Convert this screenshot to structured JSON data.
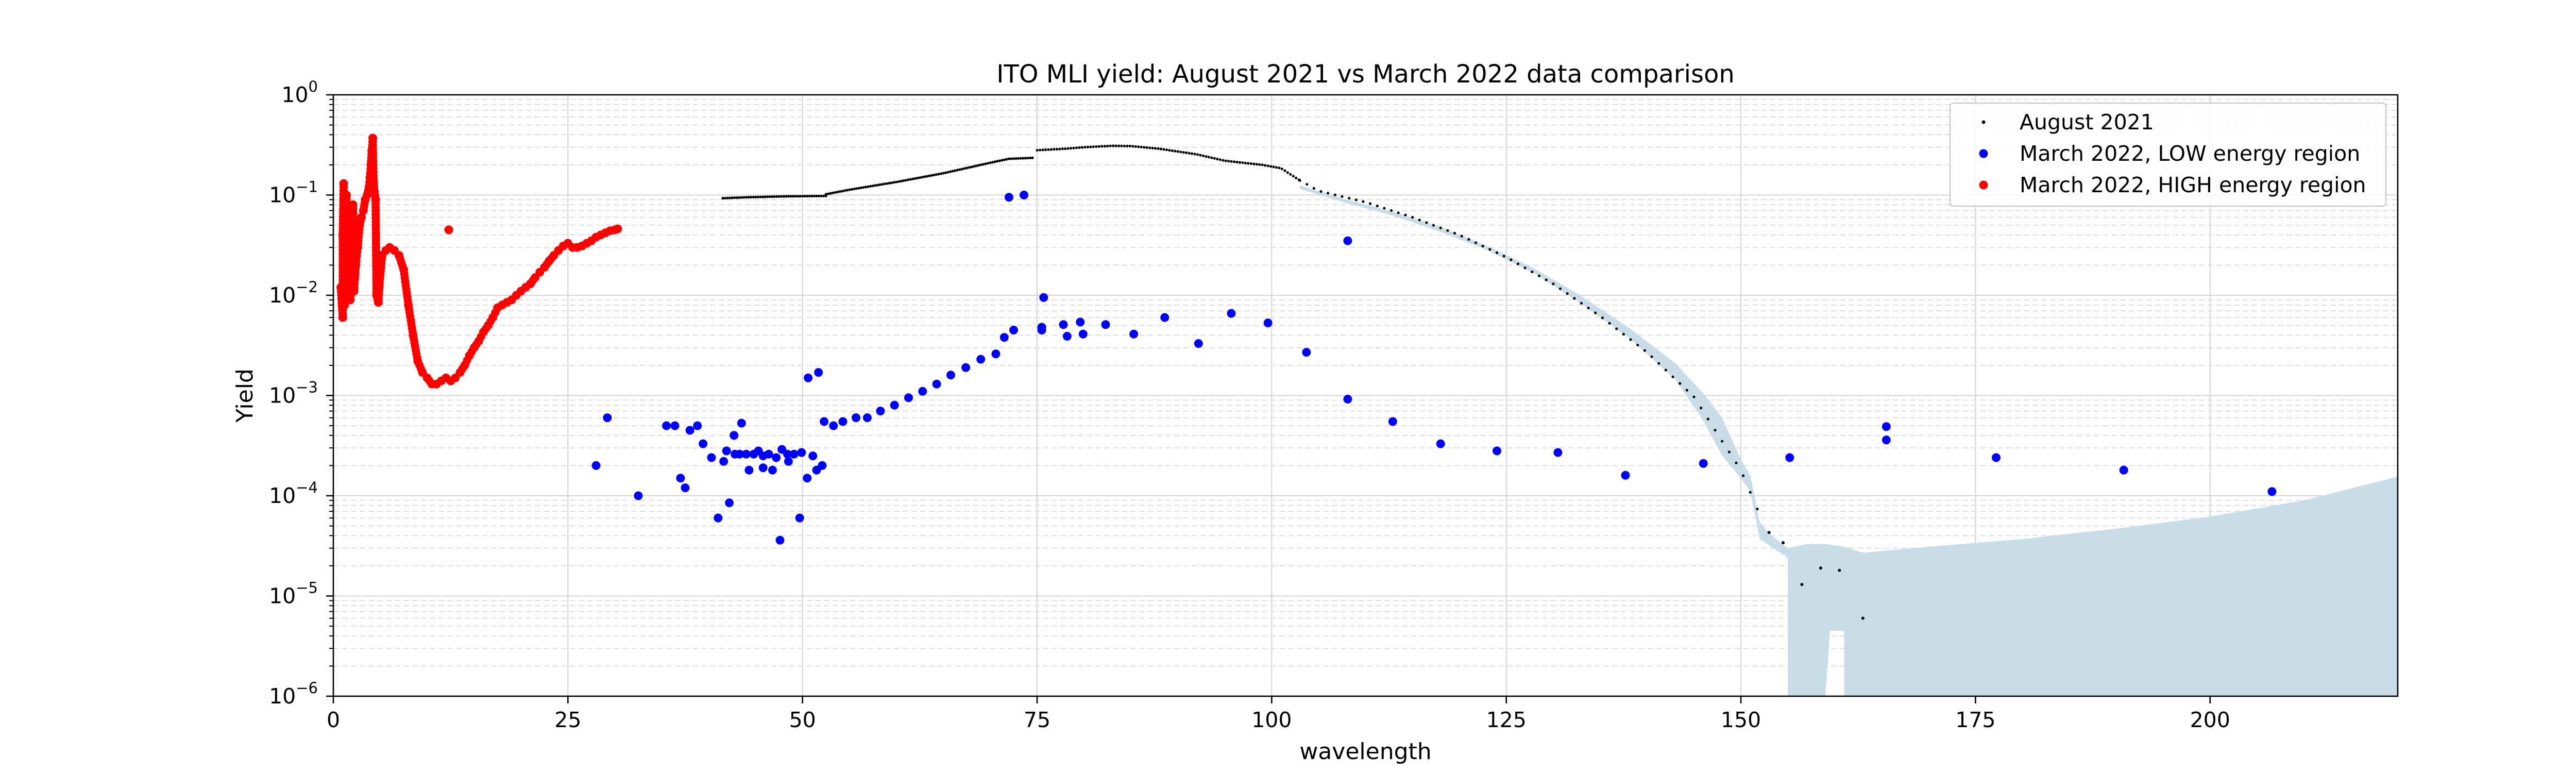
{
  "chart_data": {
    "type": "scatter",
    "title": "ITO MLI yield: August 2021 vs March 2022 data comparison",
    "xlabel": "wavelength",
    "ylabel": "Yield",
    "xlim": [
      0,
      220
    ],
    "ylim": [
      1e-06,
      1
    ],
    "yscale": "log",
    "x_ticks": [
      0,
      25,
      50,
      75,
      100,
      125,
      150,
      175,
      200
    ],
    "x_tick_labels": [
      "0",
      "25",
      "50",
      "75",
      "100",
      "125",
      "150",
      "175",
      "200"
    ],
    "y_ticks": [
      {
        "value": 1e-06,
        "base": "10",
        "exp": "−6"
      },
      {
        "value": 1e-05,
        "base": "10",
        "exp": "−5"
      },
      {
        "value": 0.0001,
        "base": "10",
        "exp": "−4"
      },
      {
        "value": 0.001,
        "base": "10",
        "exp": "−3"
      },
      {
        "value": 0.01,
        "base": "10",
        "exp": "−2"
      },
      {
        "value": 0.1,
        "base": "10",
        "exp": "−1"
      },
      {
        "value": 1,
        "base": "10",
        "exp": "0"
      }
    ],
    "grid": true,
    "legend_position": "top-right",
    "colors": {
      "august": "#000000",
      "low": "#0000ff",
      "high": "#ff0000",
      "band": "#c9dde9",
      "grid_major": "#d4d4d4",
      "grid_minor": "#dedede"
    },
    "band": {
      "description": "uncertainty band around August 2021 data",
      "upper": [
        [
          103,
          0.125
        ],
        [
          108,
          0.09
        ],
        [
          113,
          0.068
        ],
        [
          118,
          0.048
        ],
        [
          123,
          0.031
        ],
        [
          128,
          0.0185
        ],
        [
          133,
          0.0098
        ],
        [
          138,
          0.0048
        ],
        [
          143,
          0.0021
        ],
        [
          146,
          0.00105
        ],
        [
          148,
          0.0006
        ],
        [
          150,
          0.00023
        ],
        [
          151,
          0.00016
        ],
        [
          152,
          5.5e-05
        ],
        [
          153,
          4.2e-05
        ],
        [
          155,
          3e-05
        ],
        [
          157,
          3.3e-05
        ],
        [
          159,
          3.3e-05
        ],
        [
          161,
          3.1e-05
        ],
        [
          163,
          2.7e-05
        ],
        [
          170,
          3.1e-05
        ],
        [
          180,
          3.7e-05
        ],
        [
          190,
          4.7e-05
        ],
        [
          200,
          6.2e-05
        ],
        [
          210,
          9e-05
        ],
        [
          220,
          0.000155
        ]
      ],
      "lower": [
        [
          220,
          1e-06
        ],
        [
          161,
          1e-06
        ],
        [
          161,
          4.5e-06
        ],
        [
          159.5,
          4.5e-06
        ],
        [
          159,
          1e-06
        ],
        [
          155,
          1e-06
        ],
        [
          155,
          2.4e-05
        ],
        [
          152,
          3.7e-05
        ],
        [
          151,
          0.00011
        ],
        [
          150,
          0.00015
        ],
        [
          148,
          0.00025
        ],
        [
          146,
          0.00056
        ],
        [
          143,
          0.00145
        ],
        [
          138,
          0.0038
        ],
        [
          133,
          0.0082
        ],
        [
          128,
          0.0165
        ],
        [
          123,
          0.028
        ],
        [
          118,
          0.043
        ],
        [
          113,
          0.062
        ],
        [
          108,
          0.083
        ],
        [
          103,
          0.115
        ]
      ]
    },
    "series": [
      {
        "name": "August 2021",
        "marker": "dot",
        "segments": [
          {
            "x_start": 41.5,
            "x_end": 52.5,
            "step": 0.25,
            "points": [
              [
                41.5,
                0.093
              ],
              [
                44,
                0.095
              ],
              [
                48,
                0.097
              ],
              [
                52.5,
                0.098
              ]
            ]
          },
          {
            "x_start": 52.5,
            "x_end": 74.5,
            "step": 0.25,
            "points": [
              [
                52.5,
                0.102
              ],
              [
                55,
                0.113
              ],
              [
                60,
                0.135
              ],
              [
                65,
                0.165
              ],
              [
                70,
                0.21
              ],
              [
                72,
                0.23
              ],
              [
                74.5,
                0.235
              ]
            ]
          },
          {
            "x_start": 75,
            "x_end": 103,
            "step": 0.3,
            "points": [
              [
                75,
                0.28
              ],
              [
                78,
                0.29
              ],
              [
                80,
                0.3
              ],
              [
                83,
                0.31
              ],
              [
                85,
                0.308
              ],
              [
                88,
                0.29
              ],
              [
                92,
                0.255
              ],
              [
                95,
                0.22
              ],
              [
                99,
                0.2
              ],
              [
                101,
                0.185
              ],
              [
                103,
                0.14
              ]
            ]
          },
          {
            "x_start": 103,
            "x_end": 152,
            "step": 0.75,
            "points": [
              [
                103,
                0.14
              ],
              [
                105,
                0.11
              ],
              [
                110,
                0.085
              ],
              [
                115,
                0.06
              ],
              [
                120,
                0.04
              ],
              [
                125,
                0.024
              ],
              [
                130,
                0.013
              ],
              [
                135,
                0.0062
              ],
              [
                140,
                0.0027
              ],
              [
                145,
                0.00097
              ],
              [
                148,
                0.00035
              ],
              [
                150,
                0.00018
              ],
              [
                152,
                6.5e-05
              ]
            ]
          }
        ],
        "points": [
          [
            153,
            4.3e-05
          ],
          [
            154.5,
            3.4e-05
          ],
          [
            156.5,
            1.3e-05
          ],
          [
            158.5,
            1.9e-05
          ],
          [
            160.5,
            1.8e-05
          ],
          [
            163,
            6e-06
          ]
        ]
      },
      {
        "name": "March 2022, LOW energy region",
        "marker": "circle",
        "points": [
          [
            28,
            0.0002
          ],
          [
            29.2,
            0.0006
          ],
          [
            32.5,
            0.0001
          ],
          [
            35.5,
            0.0005
          ],
          [
            36.4,
            0.0005
          ],
          [
            37,
            0.00015
          ],
          [
            37.5,
            0.00012
          ],
          [
            38,
            0.00045
          ],
          [
            38.8,
            0.0005
          ],
          [
            39.4,
            0.00033
          ],
          [
            40.3,
            0.00024
          ],
          [
            41,
            6e-05
          ],
          [
            41.6,
            0.00022
          ],
          [
            41.9,
            0.00028
          ],
          [
            42.2,
            8.5e-05
          ],
          [
            42.7,
            0.0004
          ],
          [
            42.8,
            0.00026
          ],
          [
            43.3,
            0.00026
          ],
          [
            43.5,
            0.00053
          ],
          [
            44,
            0.00026
          ],
          [
            44.3,
            0.00018
          ],
          [
            44.8,
            0.00026
          ],
          [
            45.3,
            0.00028
          ],
          [
            45.8,
            0.00019
          ],
          [
            45.8,
            0.00025
          ],
          [
            46.4,
            0.00026
          ],
          [
            46.8,
            0.00018
          ],
          [
            47.2,
            0.00024
          ],
          [
            47.6,
            3.6e-05
          ],
          [
            47.8,
            0.00029
          ],
          [
            48.4,
            0.00026
          ],
          [
            48.5,
            0.00022
          ],
          [
            49.1,
            0.00026
          ],
          [
            49.7,
            6e-05
          ],
          [
            49.9,
            0.00027
          ],
          [
            50.5,
            0.00015
          ],
          [
            50.6,
            0.0015
          ],
          [
            51.1,
            0.00025
          ],
          [
            51.5,
            0.00018
          ],
          [
            51.7,
            0.0017
          ],
          [
            52.1,
            0.0002
          ],
          [
            52.3,
            0.00055
          ],
          [
            53.3,
            0.0005
          ],
          [
            54.3,
            0.00055
          ],
          [
            55.7,
            0.0006
          ],
          [
            56.9,
            0.0006
          ],
          [
            58.3,
            0.0007
          ],
          [
            59.8,
            0.0008
          ],
          [
            61.3,
            0.00095
          ],
          [
            62.8,
            0.0011
          ],
          [
            64.3,
            0.0013
          ],
          [
            65.8,
            0.0016
          ],
          [
            67.4,
            0.0019
          ],
          [
            69,
            0.0023
          ],
          [
            70.6,
            0.0026
          ],
          [
            71.5,
            0.0038
          ],
          [
            72,
            0.095
          ],
          [
            72.5,
            0.0045
          ],
          [
            73.6,
            0.1
          ],
          [
            75.5,
            0.0048
          ],
          [
            75.5,
            0.0045
          ],
          [
            75.7,
            0.0095
          ],
          [
            77.8,
            0.0051
          ],
          [
            78.2,
            0.0039
          ],
          [
            79.6,
            0.0054
          ],
          [
            79.9,
            0.0041
          ],
          [
            82.3,
            0.0051
          ],
          [
            85.3,
            0.0041
          ],
          [
            88.6,
            0.006
          ],
          [
            92.2,
            0.0033
          ],
          [
            95.7,
            0.0066
          ],
          [
            99.6,
            0.0053
          ],
          [
            103.7,
            0.0027
          ],
          [
            108.1,
            0.035
          ],
          [
            108.1,
            0.00092
          ],
          [
            112.9,
            0.00055
          ],
          [
            118,
            0.00033
          ],
          [
            124,
            0.00028
          ],
          [
            130.5,
            0.00027
          ],
          [
            137.7,
            0.00016
          ],
          [
            146,
            0.00021
          ],
          [
            155.2,
            0.00024
          ],
          [
            165.5,
            0.00049
          ],
          [
            165.5,
            0.00036
          ],
          [
            177.2,
            0.00024
          ],
          [
            190.8,
            0.00018
          ],
          [
            206.6,
            0.00011
          ]
        ]
      },
      {
        "name": "March 2022, HIGH energy region",
        "marker": "circle",
        "points": [
          [
            0.8,
            0.012
          ],
          [
            1,
            0.006
          ],
          [
            1,
            0.04
          ],
          [
            1.1,
            0.13
          ],
          [
            1.2,
            0.008
          ],
          [
            1.3,
            0.02
          ],
          [
            1.4,
            0.1
          ],
          [
            1.5,
            0.012
          ],
          [
            1.6,
            0.03
          ],
          [
            1.8,
            0.009
          ],
          [
            2,
            0.015
          ],
          [
            2.1,
            0.08
          ],
          [
            2.2,
            0.011
          ],
          [
            2.4,
            0.02
          ],
          [
            2.6,
            0.03
          ],
          [
            2.8,
            0.05
          ],
          [
            3,
            0.06
          ],
          [
            3.2,
            0.07
          ],
          [
            3.4,
            0.09
          ],
          [
            3.6,
            0.1
          ],
          [
            3.8,
            0.12
          ],
          [
            3.9,
            0.15
          ],
          [
            4,
            0.2
          ],
          [
            4.1,
            0.28
          ],
          [
            4.2,
            0.37
          ],
          [
            4.3,
            0.13
          ],
          [
            4.5,
            0.09
          ],
          [
            4.6,
            0.01
          ],
          [
            4.8,
            0.0085
          ],
          [
            4.9,
            0.012
          ],
          [
            5.2,
            0.025
          ],
          [
            5.6,
            0.028
          ],
          [
            6,
            0.03
          ],
          [
            6.5,
            0.028
          ],
          [
            7,
            0.025
          ],
          [
            7.5,
            0.018
          ],
          [
            8,
            0.008
          ],
          [
            8.5,
            0.004
          ],
          [
            9,
            0.0022
          ],
          [
            9.5,
            0.0017
          ],
          [
            10,
            0.0015
          ],
          [
            10.5,
            0.0013
          ],
          [
            11,
            0.0013
          ],
          [
            11.5,
            0.0014
          ],
          [
            12,
            0.0015
          ],
          [
            12.3,
            0.045
          ],
          [
            12.5,
            0.0014
          ],
          [
            13,
            0.0015
          ],
          [
            13.5,
            0.0017
          ],
          [
            14,
            0.002
          ],
          [
            14.5,
            0.0025
          ],
          [
            15,
            0.003
          ],
          [
            15.5,
            0.0035
          ],
          [
            16,
            0.0043
          ],
          [
            16.5,
            0.005
          ],
          [
            17,
            0.006
          ],
          [
            17.5,
            0.0075
          ],
          [
            18,
            0.008
          ],
          [
            18.5,
            0.0085
          ],
          [
            19,
            0.009
          ],
          [
            19.5,
            0.01
          ],
          [
            20,
            0.011
          ],
          [
            20.5,
            0.012
          ],
          [
            21,
            0.013
          ],
          [
            21.5,
            0.015
          ],
          [
            22,
            0.017
          ],
          [
            22.5,
            0.019
          ],
          [
            23,
            0.022
          ],
          [
            23.5,
            0.025
          ],
          [
            24,
            0.028
          ],
          [
            24.5,
            0.031
          ],
          [
            25,
            0.033
          ],
          [
            25.5,
            0.03
          ],
          [
            26,
            0.03
          ],
          [
            26.5,
            0.031
          ],
          [
            27,
            0.033
          ],
          [
            27.5,
            0.035
          ],
          [
            28,
            0.038
          ],
          [
            28.5,
            0.04
          ],
          [
            29,
            0.042
          ],
          [
            29.5,
            0.044
          ],
          [
            30,
            0.045
          ],
          [
            30.3,
            0.046
          ]
        ]
      }
    ]
  }
}
